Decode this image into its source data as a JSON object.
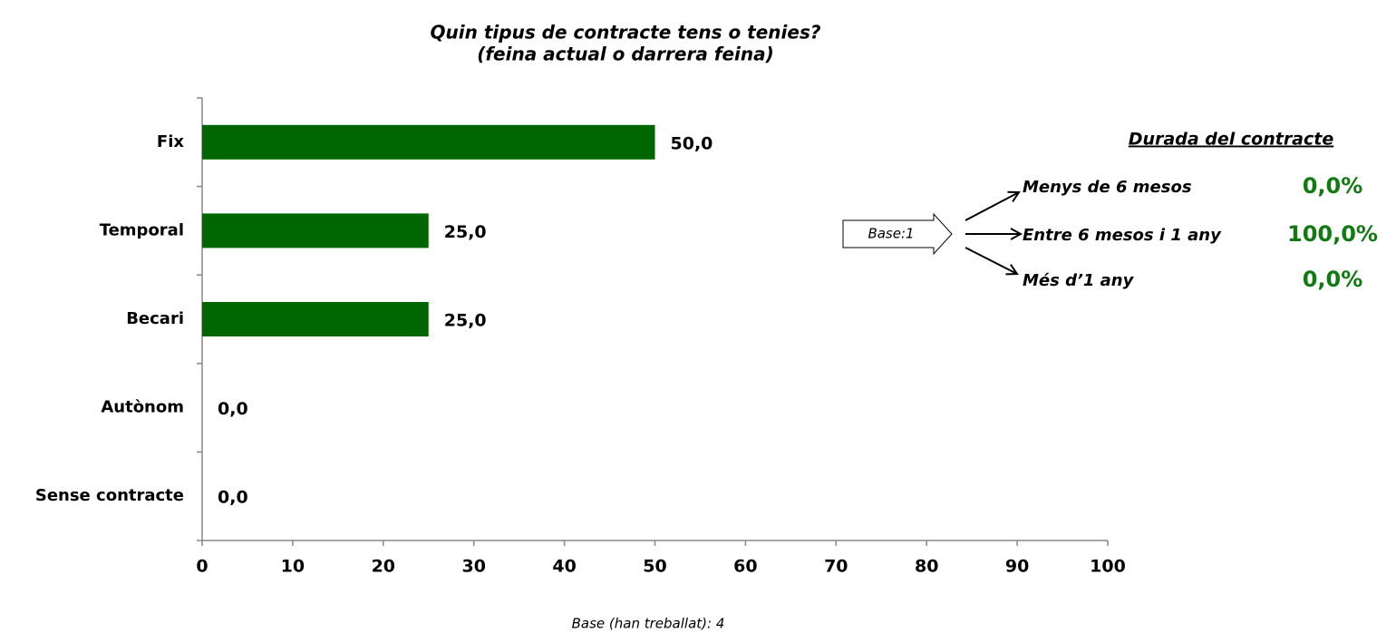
{
  "chart_data": {
    "type": "barh",
    "title": "Quin tipus de contracte tens o tenies?",
    "subtitle": "(feina actual o darrera feina)",
    "categories": [
      "Fix",
      "Temporal",
      "Becari",
      "Autònom",
      "Sense contracte"
    ],
    "values": [
      50,
      25,
      25,
      0,
      0
    ],
    "value_labels": [
      "50,0",
      "25,0",
      "25,0",
      "0,0",
      "0,0"
    ],
    "color": "#006600",
    "xlim": [
      0,
      100
    ],
    "xticks": [
      0,
      10,
      20,
      30,
      40,
      50,
      60,
      70,
      80,
      90,
      100
    ],
    "duration": {
      "title": "Durada del contracte",
      "base": "Base:1",
      "items": [
        {
          "label": "Menys de 6 mesos",
          "value": 0,
          "value_label": "0,0%"
        },
        {
          "label": "Entre 6 mesos i 1 any",
          "value": 100,
          "value_label": "100,0%"
        },
        {
          "label": "Més d’1 any",
          "value": 0,
          "value_label": "0,0%"
        }
      ],
      "color": "#117a11"
    },
    "footnote": "Base (han treballat): 4"
  }
}
